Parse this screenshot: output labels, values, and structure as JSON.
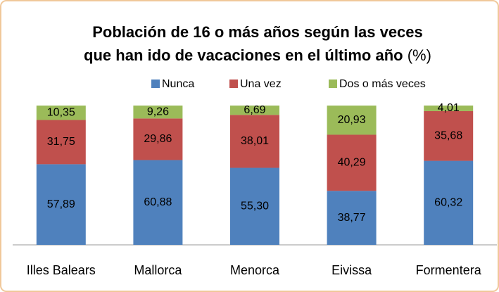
{
  "chart_data": {
    "type": "stacked_bar",
    "title": [
      "Población de 16 o más años según las veces",
      "que han ido de vacaciones en el último año"
    ],
    "title_unit": "(%)",
    "categories": [
      "Illes Balears",
      "Mallorca",
      "Menorca",
      "Eivissa",
      "Formentera"
    ],
    "series": [
      {
        "name": "Nunca",
        "color": "#4f81bd",
        "values": [
          57.89,
          60.88,
          55.3,
          38.77,
          60.32
        ],
        "value_labels": [
          "57,89",
          "60,88",
          "55,30",
          "38,77",
          "60,32"
        ]
      },
      {
        "name": "Una vez",
        "color": "#c0504d",
        "values": [
          31.75,
          29.86,
          38.01,
          40.29,
          35.68
        ],
        "value_labels": [
          "31,75",
          "29,86",
          "38,01",
          "40,29",
          "35,68"
        ]
      },
      {
        "name": "Dos o más veces",
        "color": "#9bbb59",
        "values": [
          10.35,
          9.26,
          6.69,
          20.93,
          4.01
        ],
        "value_labels": [
          "10,35",
          "9,26",
          "6,69",
          "20,93",
          "4,01"
        ]
      }
    ],
    "legend": "top"
  }
}
